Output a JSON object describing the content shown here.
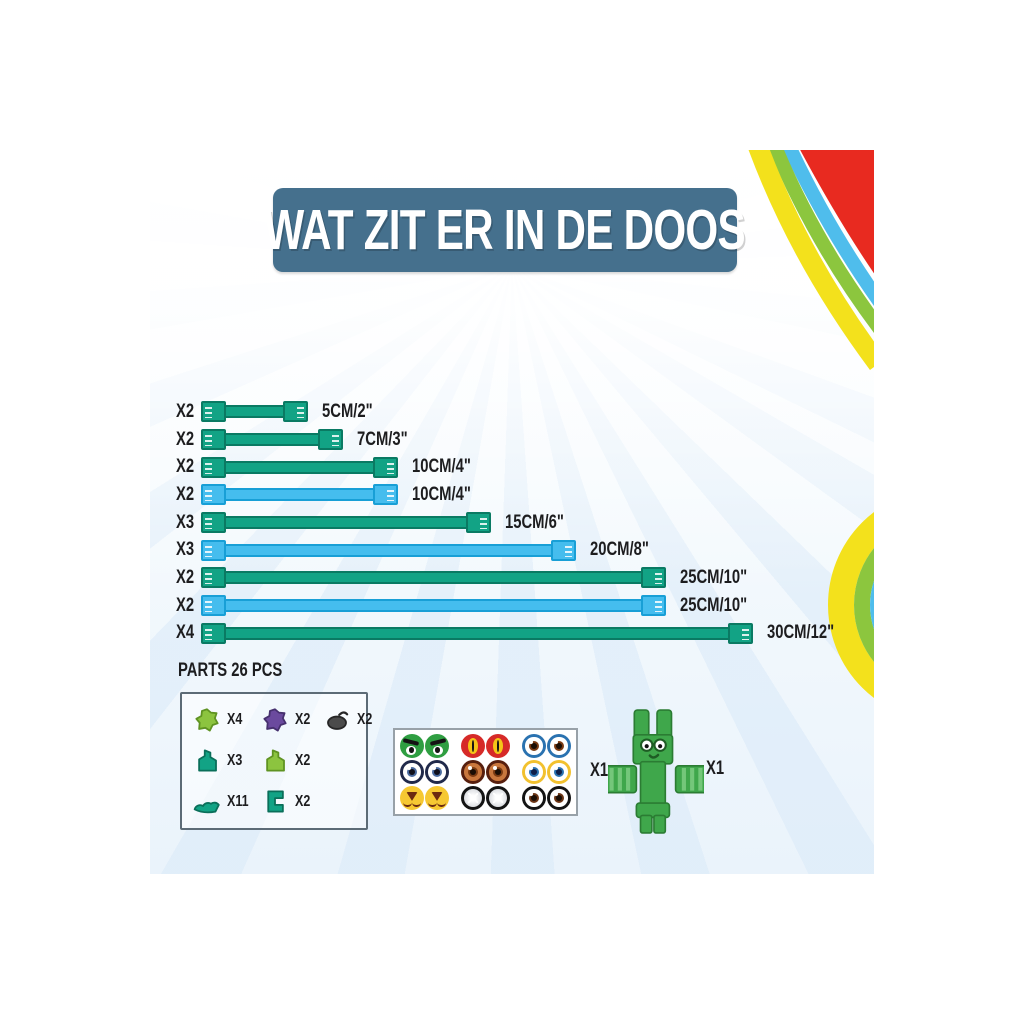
{
  "title": "WAT ZIT ER IN DE DOOS",
  "tube_chart": {
    "rows": [
      {
        "qty": "X2",
        "color": "green",
        "label": "5CM/2\"",
        "length": 107
      },
      {
        "qty": "X2",
        "color": "green",
        "label": "7CM/3\"",
        "length": 142
      },
      {
        "qty": "X2",
        "color": "green",
        "label": "10CM/4\"",
        "length": 197
      },
      {
        "qty": "X2",
        "color": "blue",
        "label": "10CM/4\"",
        "length": 197
      },
      {
        "qty": "X3",
        "color": "green",
        "label": "15CM/6\"",
        "length": 290
      },
      {
        "qty": "X3",
        "color": "blue",
        "label": "20CM/8\"",
        "length": 375
      },
      {
        "qty": "X2",
        "color": "green",
        "label": "25CM/10\"",
        "length": 465
      },
      {
        "qty": "X2",
        "color": "blue",
        "label": "25CM/10\"",
        "length": 465
      },
      {
        "qty": "X4",
        "color": "green",
        "label": "30CM/12\"",
        "length": 552
      }
    ]
  },
  "parts": {
    "heading": "PARTS 26 PCS",
    "rows": [
      3,
      2,
      2
    ],
    "items": [
      {
        "name": "gear-piece-lime",
        "shape": "gear",
        "color": "#8cc43f",
        "shade": "#5f9322",
        "qty": "X4"
      },
      {
        "name": "gear-piece-purple",
        "shape": "gear",
        "color": "#6b4a9e",
        "shade": "#46306e",
        "qty": "X2"
      },
      {
        "name": "suction-cup-black",
        "shape": "suction",
        "color": "#4b4b4b",
        "shade": "#262626",
        "qty": "X2"
      },
      {
        "name": "connector-piece-teal",
        "shape": "connector",
        "color": "#12a385",
        "shade": "#0a6f5a",
        "qty": "X3"
      },
      {
        "name": "connector-piece-lime",
        "shape": "connector",
        "color": "#8cc43f",
        "shade": "#5f9322",
        "qty": "X2"
      },
      {
        "name": "claw-piece-teal",
        "shape": "claw",
        "color": "#12a385",
        "shade": "#0a6f5a",
        "qty": "X11"
      },
      {
        "name": "bracket-piece-teal",
        "shape": "bracket",
        "color": "#12a385",
        "shade": "#0a6f5a",
        "qty": "X2"
      }
    ]
  },
  "sticker_sheet": {
    "qty": "X1",
    "pairs": [
      {
        "kind": "angry",
        "bg": "#2f9e41",
        "detail": "#141414"
      },
      {
        "kind": "cat",
        "bg": "#d62a28",
        "iris": "#f5c518",
        "detail": "#141414"
      },
      {
        "kind": "eye",
        "ring": "#2a72b0",
        "sclera": "#ffffff",
        "iris": "#7a3a12",
        "pupil": "#1a0d04"
      },
      {
        "kind": "eye",
        "ring": "#20294a",
        "sclera": "#ffffff",
        "iris": "#4a6a9e",
        "pupil": "#10101c"
      },
      {
        "kind": "eye",
        "ring": "#571f0e",
        "sclera": "#c9773d",
        "iris": "#7a3a12",
        "pupil": "#1a0d04"
      },
      {
        "kind": "eye",
        "ring": "#f2c12e",
        "sclera": "#ffffff",
        "iris": "#2a72b0",
        "pupil": "#10204a"
      },
      {
        "kind": "muzzle",
        "bg": "#f6c832",
        "detail": "#6b2a10"
      },
      {
        "kind": "sparkle",
        "ring": "#141414",
        "center": "#c9ccd2"
      },
      {
        "kind": "eye",
        "ring": "#141414",
        "sclera": "#ffffff",
        "iris": "#6b3414",
        "pupil": "#1a0d04"
      }
    ]
  },
  "figure": {
    "qty": "X1",
    "name": "green-tube-character"
  },
  "colors": {
    "title_bg": "#45708d",
    "tube_green": "#12a385",
    "tube_green_dark": "#0a7a63",
    "tube_blue": "#45bdee",
    "tube_blue_dark": "#189fd6",
    "ray": "#d9e9f8",
    "arc_red": "#e82a20",
    "arc_blue": "#4fbdec",
    "arc_green": "#8cc63e",
    "arc_yellow": "#f3e11c",
    "figure_green": "#3fa74b",
    "figure_dark": "#2b7c33",
    "figure_light": "#74c77a"
  }
}
